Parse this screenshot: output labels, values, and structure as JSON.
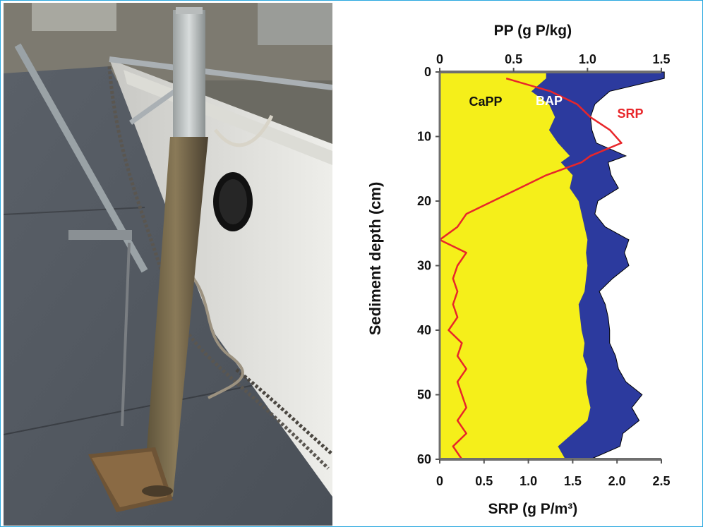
{
  "photo": {
    "description_icon": "sediment-core-on-boat-deck-photo"
  },
  "chart_data": {
    "type": "area",
    "orientation": "depth-profile",
    "top_axis": {
      "label": "PP (g P/kg)",
      "range": [
        0,
        1.5
      ],
      "ticks": [
        "0",
        "0.5",
        "1.0",
        "1.5"
      ]
    },
    "bottom_axis": {
      "label": "SRP (g P/m³)",
      "range": [
        0,
        2.5
      ],
      "ticks": [
        "0",
        "0.5",
        "1.0",
        "1.5",
        "2.0",
        "2.5"
      ]
    },
    "y_axis": {
      "label": "Sediment depth (cm)",
      "range": [
        0,
        60
      ],
      "inverted": true,
      "ticks": [
        "0",
        "10",
        "20",
        "30",
        "40",
        "50",
        "60"
      ]
    },
    "depth": [
      1,
      3,
      5,
      7,
      9,
      11,
      13,
      14,
      16,
      18,
      20,
      22,
      24,
      26,
      28,
      30,
      32,
      34,
      36,
      38,
      40,
      42,
      44,
      46,
      48,
      50,
      52,
      54,
      56,
      58,
      60
    ],
    "series": [
      {
        "name": "CaPP",
        "color": "#f5ef1a",
        "axis": "top",
        "values": [
          0.72,
          0.62,
          0.74,
          0.78,
          0.74,
          0.8,
          0.88,
          0.82,
          0.9,
          0.88,
          0.94,
          0.96,
          0.98,
          1.0,
          0.99,
          1.0,
          0.99,
          0.98,
          0.94,
          0.95,
          0.96,
          0.98,
          0.97,
          1.0,
          0.99,
          1.0,
          1.02,
          1.0,
          0.9,
          0.8,
          0.85
        ]
      },
      {
        "name": "BAP",
        "color": "#2c3a9e",
        "axis": "top",
        "values": [
          1.52,
          1.15,
          1.05,
          1.02,
          1.03,
          1.06,
          1.26,
          1.14,
          1.16,
          1.21,
          1.07,
          1.05,
          1.12,
          1.28,
          1.25,
          1.28,
          1.17,
          1.08,
          1.12,
          1.14,
          1.15,
          1.15,
          1.19,
          1.21,
          1.26,
          1.37,
          1.3,
          1.35,
          1.24,
          1.22,
          1.02
        ]
      },
      {
        "name": "SRP",
        "color": "#e8262a",
        "axis": "bottom",
        "values": [
          0.75,
          1.25,
          1.55,
          1.7,
          1.92,
          2.05,
          1.7,
          1.6,
          1.2,
          0.9,
          0.6,
          0.3,
          0.2,
          0.0,
          0.3,
          0.2,
          0.15,
          0.2,
          0.15,
          0.2,
          0.1,
          0.25,
          0.2,
          0.3,
          0.2,
          0.25,
          0.3,
          0.2,
          0.3,
          0.15,
          0.25
        ]
      }
    ],
    "annotations": [
      {
        "text": "CaPP",
        "series": "CaPP"
      },
      {
        "text": "BAP",
        "series": "BAP"
      },
      {
        "text": "SRP",
        "series": "SRP"
      }
    ]
  }
}
